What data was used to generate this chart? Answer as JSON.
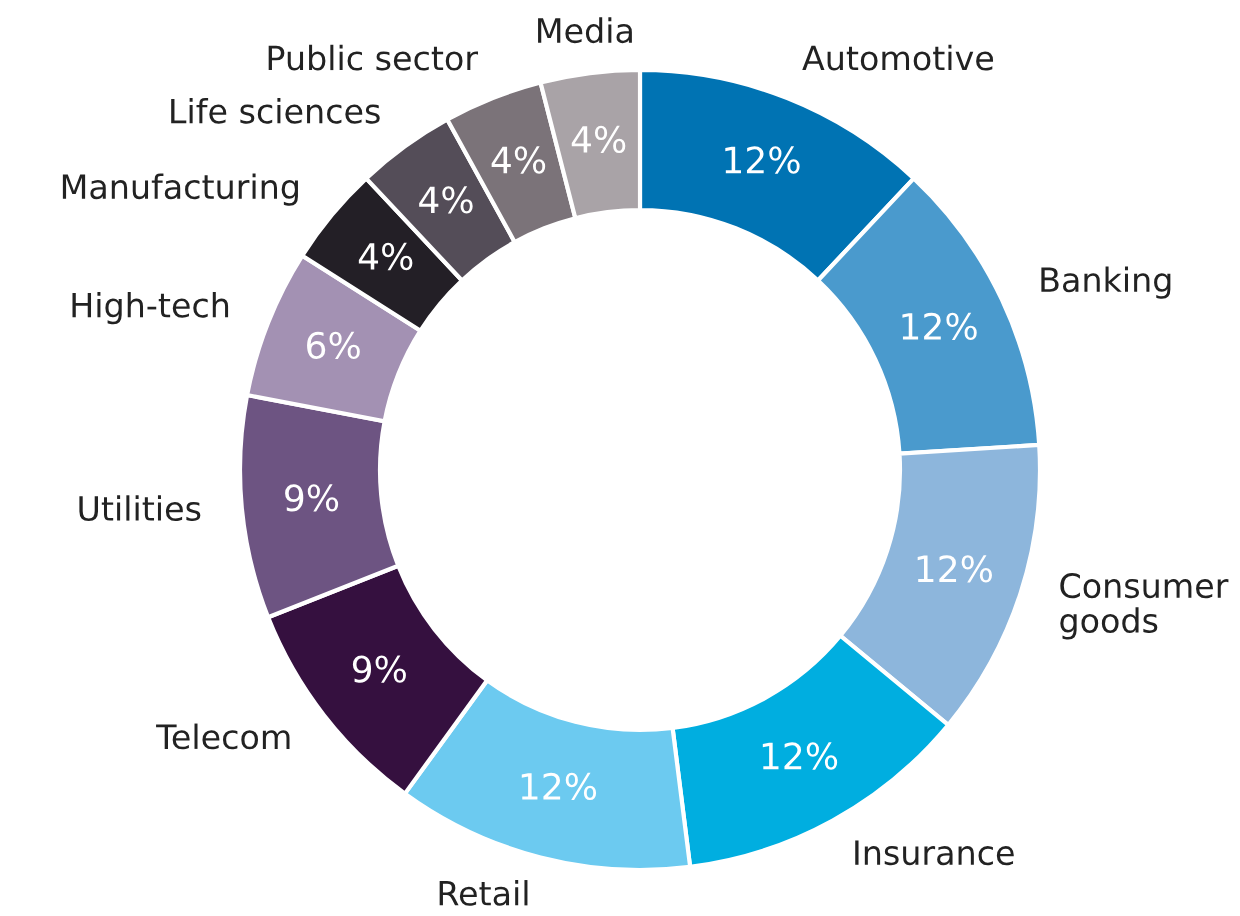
{
  "chart_data": {
    "type": "donut",
    "categories": [
      "Automotive",
      "Banking",
      "Consumer\ngoods",
      "Insurance",
      "Retail",
      "Telecom",
      "Utilities",
      "High-tech",
      "Manufacturing",
      "Life sciences",
      "Public sector",
      "Media"
    ],
    "values": [
      12,
      12,
      12,
      12,
      12,
      9,
      9,
      6,
      4,
      4,
      4,
      4
    ],
    "value_labels": [
      "12%",
      "12%",
      "12%",
      "12%",
      "12%",
      "9%",
      "9%",
      "6%",
      "4%",
      "4%",
      "4%",
      "4%"
    ],
    "colors": [
      "#0073b3",
      "#4a9acd",
      "#8db6dc",
      "#00aee0",
      "#6ccaf0",
      "#35103f",
      "#6d5482",
      "#a391b3",
      "#231f26",
      "#544d58",
      "#7b7379",
      "#a9a3a7"
    ],
    "legend": false
  }
}
